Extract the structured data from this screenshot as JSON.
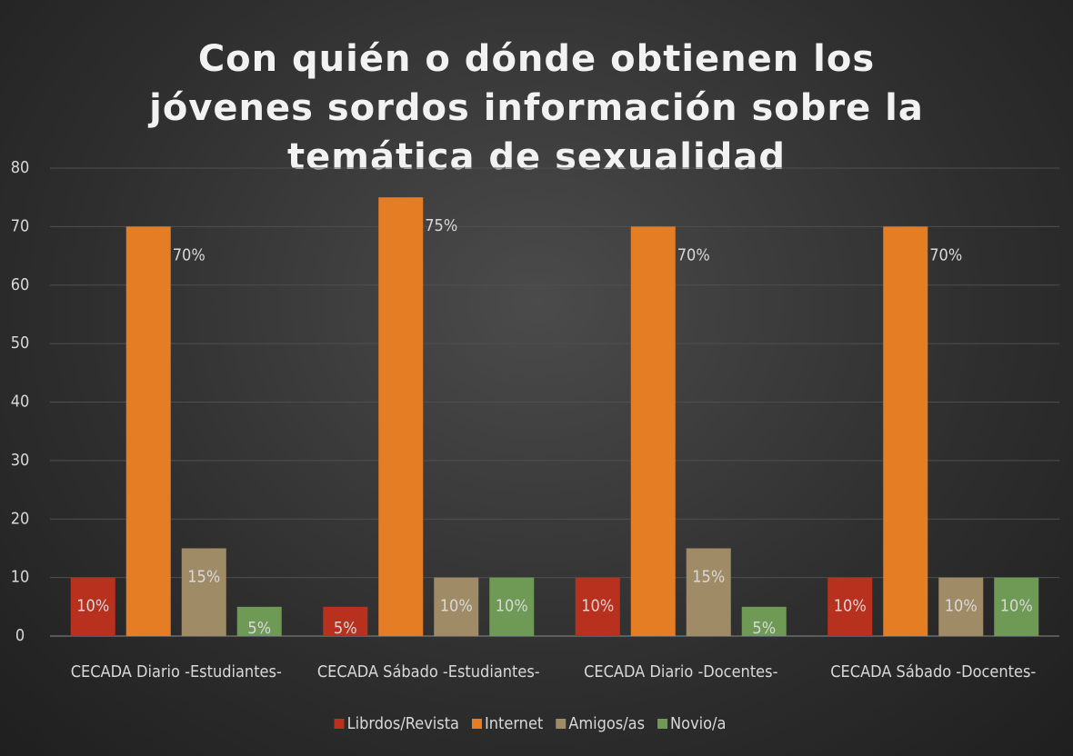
{
  "chart_data": {
    "type": "bar",
    "title": "Con quién o dónde obtienen los jóvenes sordos información sobre la temática de sexualidad",
    "categories": [
      "CECADA Diario -Estudiantes-",
      "CECADA Sábado -Estudiantes-",
      "CECADA Diario -Docentes-",
      "CECADA Sábado -Docentes-"
    ],
    "series": [
      {
        "name": "Librdos/Revista",
        "color": "#b8311f",
        "values": [
          10,
          5,
          10,
          10
        ],
        "value_labels": [
          "10%",
          "5%",
          "10%",
          "10%"
        ]
      },
      {
        "name": "Internet",
        "color": "#e57d25",
        "values": [
          70,
          75,
          70,
          70
        ],
        "value_labels": [
          "70%",
          "75%",
          "70%",
          "70%"
        ]
      },
      {
        "name": "Amigos/as",
        "color": "#a08b67",
        "values": [
          15,
          10,
          15,
          10
        ],
        "value_labels": [
          "15%",
          "10%",
          "15%",
          "10%"
        ]
      },
      {
        "name": "Novio/a",
        "color": "#6e9a55",
        "values": [
          5,
          10,
          5,
          10
        ],
        "value_labels": [
          "5%",
          "10%",
          "5%",
          "10%"
        ]
      }
    ],
    "ylim": [
      0,
      80
    ],
    "yticks": [
      0,
      10,
      20,
      30,
      40,
      50,
      60,
      70,
      80
    ],
    "grid": true,
    "legend": "bottom"
  }
}
